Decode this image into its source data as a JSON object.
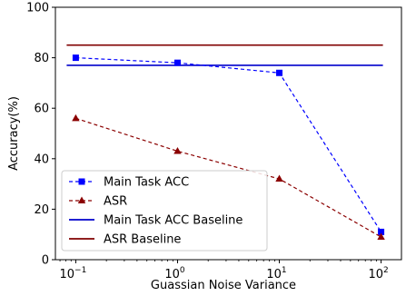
{
  "chart_data": {
    "type": "line",
    "xscale": "log",
    "x": [
      0.1,
      1,
      10,
      100
    ],
    "xlim": [
      0.0631,
      158.5
    ],
    "ylim": [
      0,
      100
    ],
    "xticks": [
      {
        "value": 0.1,
        "base": "10",
        "exp": "−1"
      },
      {
        "value": 1,
        "base": "10",
        "exp": "0"
      },
      {
        "value": 10,
        "base": "10",
        "exp": "1"
      },
      {
        "value": 100,
        "base": "10",
        "exp": "2"
      }
    ],
    "yticks": [
      0,
      20,
      40,
      60,
      80,
      100
    ],
    "xlabel": "Guassian Noise Variance",
    "ylabel": "Accuracy(%)",
    "grid": false,
    "legend_position": "lower-left",
    "series": [
      {
        "name": "Main Task ACC",
        "values": [
          80,
          78,
          74,
          11
        ],
        "color": "#0000ff",
        "linestyle": "dashed",
        "marker": "square"
      },
      {
        "name": "ASR",
        "values": [
          56,
          43,
          32,
          9
        ],
        "color": "#8b0000",
        "linestyle": "dashed",
        "marker": "triangle"
      }
    ],
    "baselines": [
      {
        "name": "Main Task ACC Baseline",
        "value": 77,
        "color": "#0000cc"
      },
      {
        "name": "ASR Baseline",
        "value": 85,
        "color": "#800000"
      }
    ]
  }
}
